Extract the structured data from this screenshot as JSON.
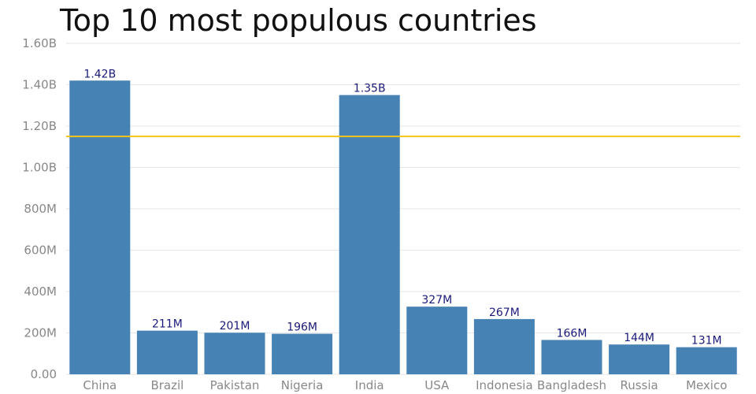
{
  "chart_data": {
    "type": "bar",
    "title": "Top 10 most populous countries",
    "categories": [
      "China",
      "Brazil",
      "Pakistan",
      "Nigeria",
      "India",
      "USA",
      "Indonesia",
      "Bangladesh",
      "Russia",
      "Mexico"
    ],
    "values": [
      1420000000,
      211000000,
      201000000,
      196000000,
      1350000000,
      327000000,
      267000000,
      166000000,
      144000000,
      131000000
    ],
    "data_labels": [
      "1.42B",
      "211M",
      "201M",
      "196M",
      "1.35B",
      "327M",
      "267M",
      "166M",
      "144M",
      "131M"
    ],
    "ylim": [
      0,
      1600000000
    ],
    "yticks": [
      0,
      200000000,
      400000000,
      600000000,
      800000000,
      1000000000,
      1200000000,
      1400000000,
      1600000000
    ],
    "ytick_labels": [
      "0.00",
      "200M",
      "400M",
      "600M",
      "800M",
      "1.00B",
      "1.20B",
      "1.40B",
      "1.60B"
    ],
    "reference_line": {
      "value": 1150000000,
      "color": "#f5c518"
    },
    "grid": true,
    "colors": {
      "bar": "#4682b4",
      "data_label": "#1a1a7a",
      "tick_label": "#888888",
      "grid": "#e6e6e6"
    }
  }
}
